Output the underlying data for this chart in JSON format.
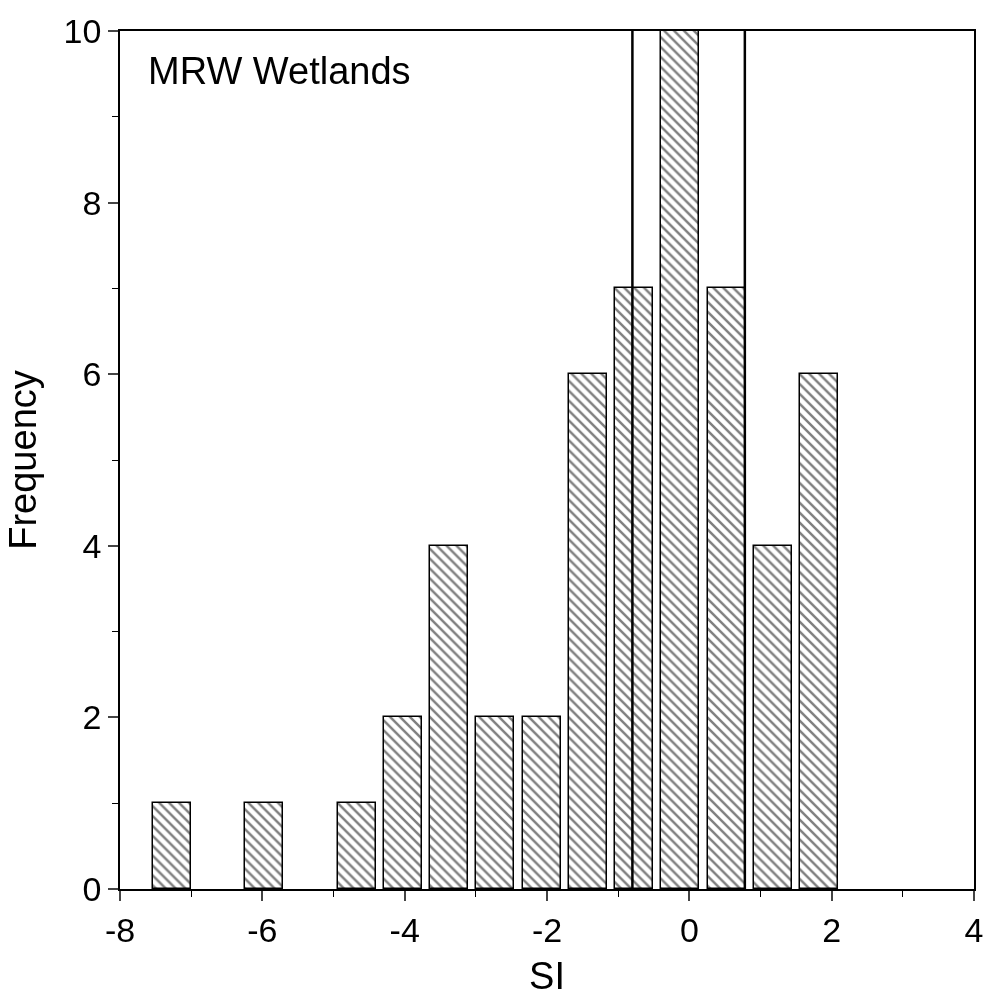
{
  "chart_data": {
    "type": "histogram",
    "xlabel": "SI",
    "ylabel": "Frequency",
    "annotations": [
      "MRW Wetlands"
    ],
    "bins": [
      -7.6,
      -6.95,
      -6.3,
      -5.65,
      -5.0,
      -4.35,
      -3.7,
      -3.05,
      -2.4,
      -1.75,
      -1.1,
      -0.45,
      0.2,
      0.85,
      1.5,
      2.15
    ],
    "values": [
      1,
      0,
      1,
      0,
      1,
      2,
      4,
      2,
      2,
      6,
      7,
      10,
      7,
      4,
      6
    ],
    "color": "#000000",
    "xlim": [
      -8,
      4
    ],
    "xticks": [
      -8,
      -6,
      -4,
      -2,
      0,
      2,
      4
    ],
    "ylim": [
      0,
      10
    ],
    "yticks": [
      0,
      2,
      4,
      6,
      8,
      10
    ],
    "ref_lines": [
      {
        "axis": "x",
        "value": -0.8,
        "color": "#000000"
      },
      {
        "axis": "x",
        "value": 0.78,
        "color": "#000000"
      }
    ],
    "tick_labels": "xy"
  }
}
